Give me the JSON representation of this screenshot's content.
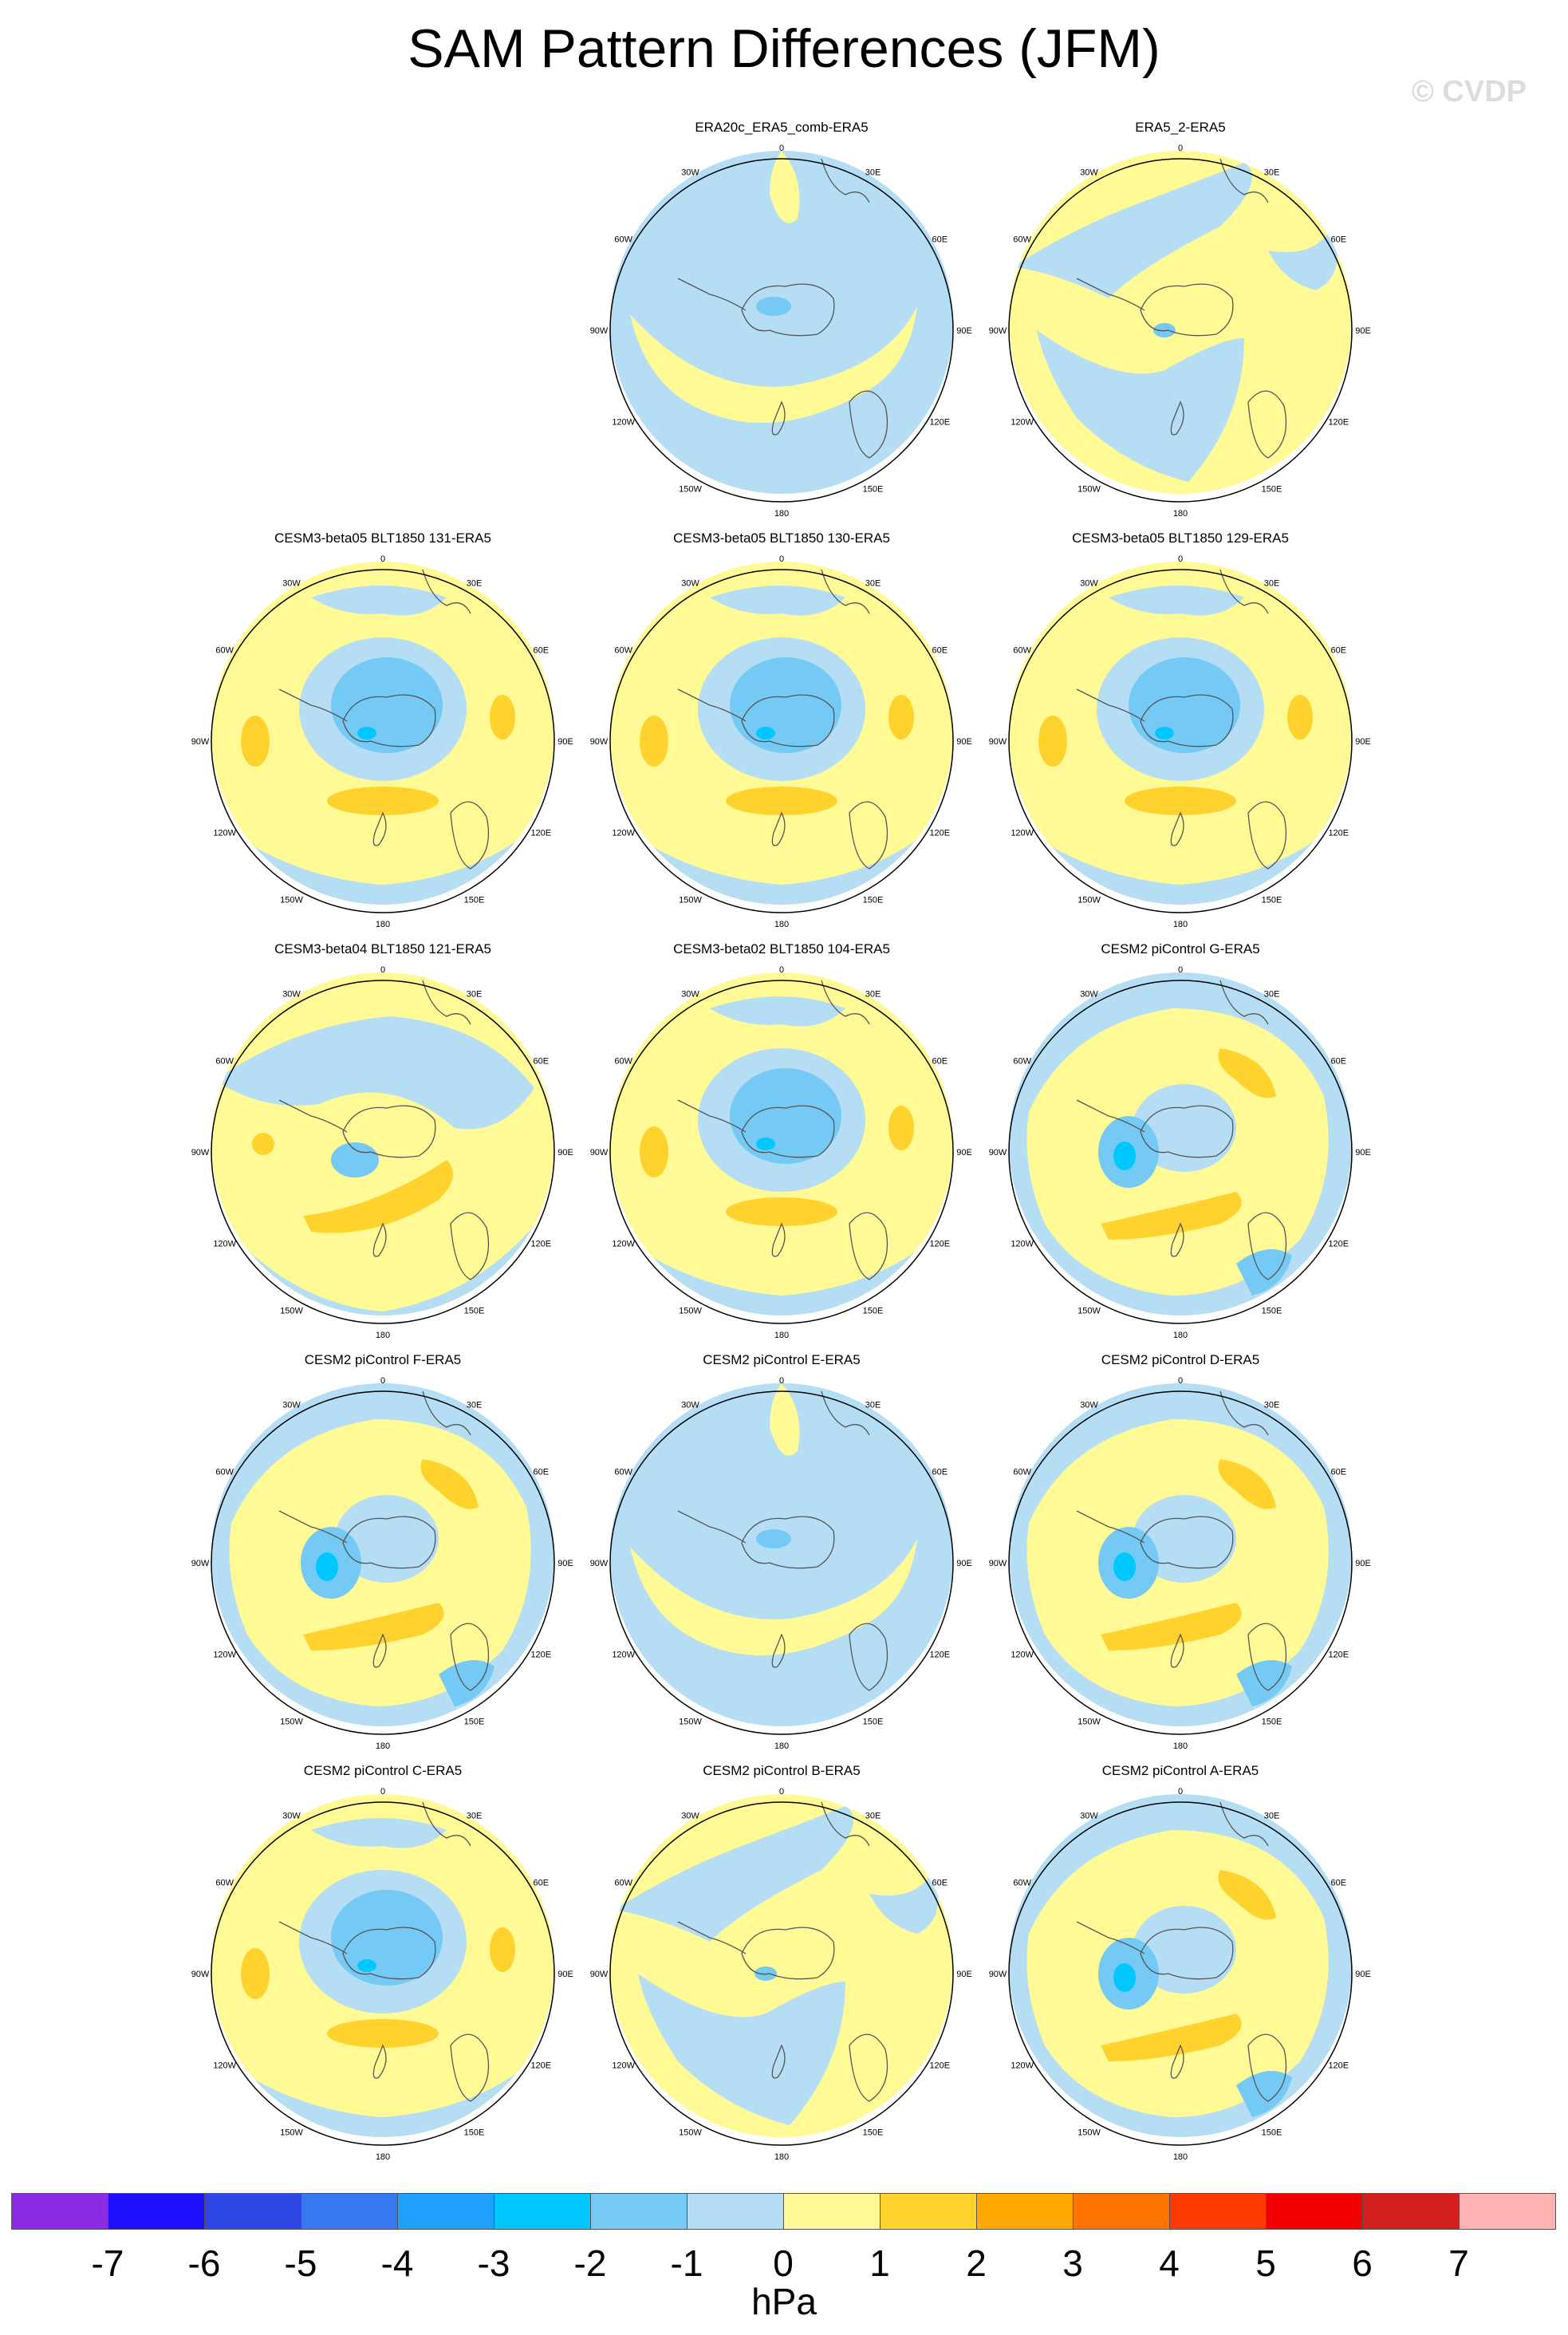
{
  "title": "SAM Pattern Differences (JFM)",
  "watermark": "© CVDP",
  "longitude_labels": [
    "0",
    "30E",
    "60E",
    "90E",
    "120E",
    "150E",
    "180",
    "150W",
    "120W",
    "90W",
    "60W",
    "30W"
  ],
  "panels": [
    {
      "title": "ERA20c_ERA5_comb-ERA5",
      "pattern": "mostly-negative"
    },
    {
      "title": "ERA5_2-ERA5",
      "pattern": "mixed"
    },
    {
      "title": "CESM3-beta05 BLT1850 131-ERA5",
      "pattern": "positive-ring"
    },
    {
      "title": "CESM3-beta05 BLT1850 130-ERA5",
      "pattern": "positive-ring"
    },
    {
      "title": "CESM3-beta05 BLT1850 129-ERA5",
      "pattern": "positive-ring"
    },
    {
      "title": "CESM3-beta04 BLT1850 121-ERA5",
      "pattern": "weak-ring"
    },
    {
      "title": "CESM3-beta02 BLT1850 104-ERA5",
      "pattern": "positive-ring"
    },
    {
      "title": "CESM2 piControl G-ERA5",
      "pattern": "strong-ring"
    },
    {
      "title": "CESM2 piControl F-ERA5",
      "pattern": "strong-ring"
    },
    {
      "title": "CESM2 piControl E-ERA5",
      "pattern": "mostly-negative"
    },
    {
      "title": "CESM2 piControl D-ERA5",
      "pattern": "strong-ring"
    },
    {
      "title": "CESM2 piControl C-ERA5",
      "pattern": "positive-ring"
    },
    {
      "title": "CESM2 piControl B-ERA5",
      "pattern": "mixed"
    },
    {
      "title": "CESM2 piControl A-ERA5",
      "pattern": "strong-ring"
    }
  ],
  "colorbar": {
    "units": "hPa",
    "labels": [
      "-7",
      "-6",
      "-5",
      "-4",
      "-3",
      "-2",
      "-1",
      "0",
      "1",
      "2",
      "3",
      "4",
      "5",
      "6",
      "7"
    ],
    "colors": [
      "#8a2be2",
      "#1e10ff",
      "#2e46e6",
      "#3578f0",
      "#1fa0ff",
      "#00c8ff",
      "#74c9f5",
      "#b5def4",
      "#fffa96",
      "#ffd22e",
      "#ffa800",
      "#ff7400",
      "#ff3a00",
      "#f00000",
      "#d2201e",
      "#ffb4b4"
    ]
  }
}
